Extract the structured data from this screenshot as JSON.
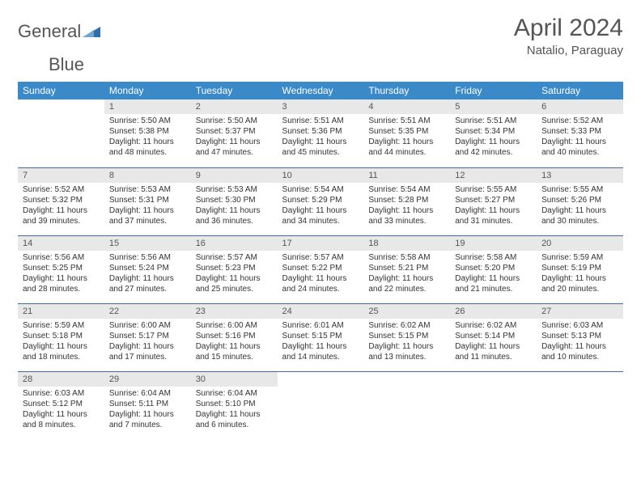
{
  "brand": {
    "word1": "General",
    "word2": "Blue"
  },
  "title": {
    "month": "April 2024",
    "location": "Natalio, Paraguay"
  },
  "colors": {
    "header_bg": "#3a89c9",
    "header_text": "#ffffff",
    "daynum_bg": "#e8e8e8",
    "border": "#3a6ea5",
    "text": "#333333",
    "logo_blue": "#2f6fa8"
  },
  "weekdays": [
    "Sunday",
    "Monday",
    "Tuesday",
    "Wednesday",
    "Thursday",
    "Friday",
    "Saturday"
  ],
  "start_offset": 1,
  "days": [
    {
      "n": 1,
      "sr": "5:50 AM",
      "ss": "5:38 PM",
      "dl": "11 hours and 48 minutes."
    },
    {
      "n": 2,
      "sr": "5:50 AM",
      "ss": "5:37 PM",
      "dl": "11 hours and 47 minutes."
    },
    {
      "n": 3,
      "sr": "5:51 AM",
      "ss": "5:36 PM",
      "dl": "11 hours and 45 minutes."
    },
    {
      "n": 4,
      "sr": "5:51 AM",
      "ss": "5:35 PM",
      "dl": "11 hours and 44 minutes."
    },
    {
      "n": 5,
      "sr": "5:51 AM",
      "ss": "5:34 PM",
      "dl": "11 hours and 42 minutes."
    },
    {
      "n": 6,
      "sr": "5:52 AM",
      "ss": "5:33 PM",
      "dl": "11 hours and 40 minutes."
    },
    {
      "n": 7,
      "sr": "5:52 AM",
      "ss": "5:32 PM",
      "dl": "11 hours and 39 minutes."
    },
    {
      "n": 8,
      "sr": "5:53 AM",
      "ss": "5:31 PM",
      "dl": "11 hours and 37 minutes."
    },
    {
      "n": 9,
      "sr": "5:53 AM",
      "ss": "5:30 PM",
      "dl": "11 hours and 36 minutes."
    },
    {
      "n": 10,
      "sr": "5:54 AM",
      "ss": "5:29 PM",
      "dl": "11 hours and 34 minutes."
    },
    {
      "n": 11,
      "sr": "5:54 AM",
      "ss": "5:28 PM",
      "dl": "11 hours and 33 minutes."
    },
    {
      "n": 12,
      "sr": "5:55 AM",
      "ss": "5:27 PM",
      "dl": "11 hours and 31 minutes."
    },
    {
      "n": 13,
      "sr": "5:55 AM",
      "ss": "5:26 PM",
      "dl": "11 hours and 30 minutes."
    },
    {
      "n": 14,
      "sr": "5:56 AM",
      "ss": "5:25 PM",
      "dl": "11 hours and 28 minutes."
    },
    {
      "n": 15,
      "sr": "5:56 AM",
      "ss": "5:24 PM",
      "dl": "11 hours and 27 minutes."
    },
    {
      "n": 16,
      "sr": "5:57 AM",
      "ss": "5:23 PM",
      "dl": "11 hours and 25 minutes."
    },
    {
      "n": 17,
      "sr": "5:57 AM",
      "ss": "5:22 PM",
      "dl": "11 hours and 24 minutes."
    },
    {
      "n": 18,
      "sr": "5:58 AM",
      "ss": "5:21 PM",
      "dl": "11 hours and 22 minutes."
    },
    {
      "n": 19,
      "sr": "5:58 AM",
      "ss": "5:20 PM",
      "dl": "11 hours and 21 minutes."
    },
    {
      "n": 20,
      "sr": "5:59 AM",
      "ss": "5:19 PM",
      "dl": "11 hours and 20 minutes."
    },
    {
      "n": 21,
      "sr": "5:59 AM",
      "ss": "5:18 PM",
      "dl": "11 hours and 18 minutes."
    },
    {
      "n": 22,
      "sr": "6:00 AM",
      "ss": "5:17 PM",
      "dl": "11 hours and 17 minutes."
    },
    {
      "n": 23,
      "sr": "6:00 AM",
      "ss": "5:16 PM",
      "dl": "11 hours and 15 minutes."
    },
    {
      "n": 24,
      "sr": "6:01 AM",
      "ss": "5:15 PM",
      "dl": "11 hours and 14 minutes."
    },
    {
      "n": 25,
      "sr": "6:02 AM",
      "ss": "5:15 PM",
      "dl": "11 hours and 13 minutes."
    },
    {
      "n": 26,
      "sr": "6:02 AM",
      "ss": "5:14 PM",
      "dl": "11 hours and 11 minutes."
    },
    {
      "n": 27,
      "sr": "6:03 AM",
      "ss": "5:13 PM",
      "dl": "11 hours and 10 minutes."
    },
    {
      "n": 28,
      "sr": "6:03 AM",
      "ss": "5:12 PM",
      "dl": "11 hours and 8 minutes."
    },
    {
      "n": 29,
      "sr": "6:04 AM",
      "ss": "5:11 PM",
      "dl": "11 hours and 7 minutes."
    },
    {
      "n": 30,
      "sr": "6:04 AM",
      "ss": "5:10 PM",
      "dl": "11 hours and 6 minutes."
    }
  ],
  "labels": {
    "sunrise": "Sunrise:",
    "sunset": "Sunset:",
    "daylight": "Daylight:"
  }
}
